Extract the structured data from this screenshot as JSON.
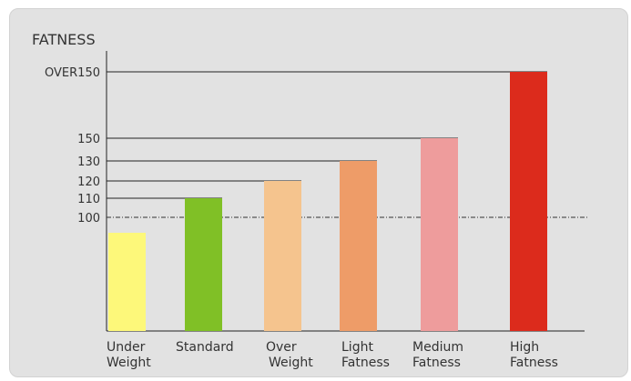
{
  "chart_data": {
    "type": "bar",
    "title": "FATNESS",
    "categories": [
      {
        "line1": "Under",
        "line2": "Weight"
      },
      {
        "line1": "Standard",
        "line2": ""
      },
      {
        "line1": "Over",
        "line2": "Weight"
      },
      {
        "line1": "Light",
        "line2": "Fatness"
      },
      {
        "line1": "Medium",
        "line2": "Fatness"
      },
      {
        "line1": "High",
        "line2": "Fatness"
      }
    ],
    "y_ticks": [
      "OVER150",
      "150",
      "130",
      "120",
      "110",
      "100"
    ],
    "bar_levels": [
      "<100",
      "110",
      "120",
      "130",
      "150",
      "OVER150"
    ],
    "reference_line": "100",
    "colors": [
      "#fdf87a",
      "#80c026",
      "#f5c48e",
      "#ee9c68",
      "#ee9c9c",
      "#dc2b1c"
    ],
    "grid": "horizontal lines from y-axis to each bar top",
    "legend": "none"
  }
}
